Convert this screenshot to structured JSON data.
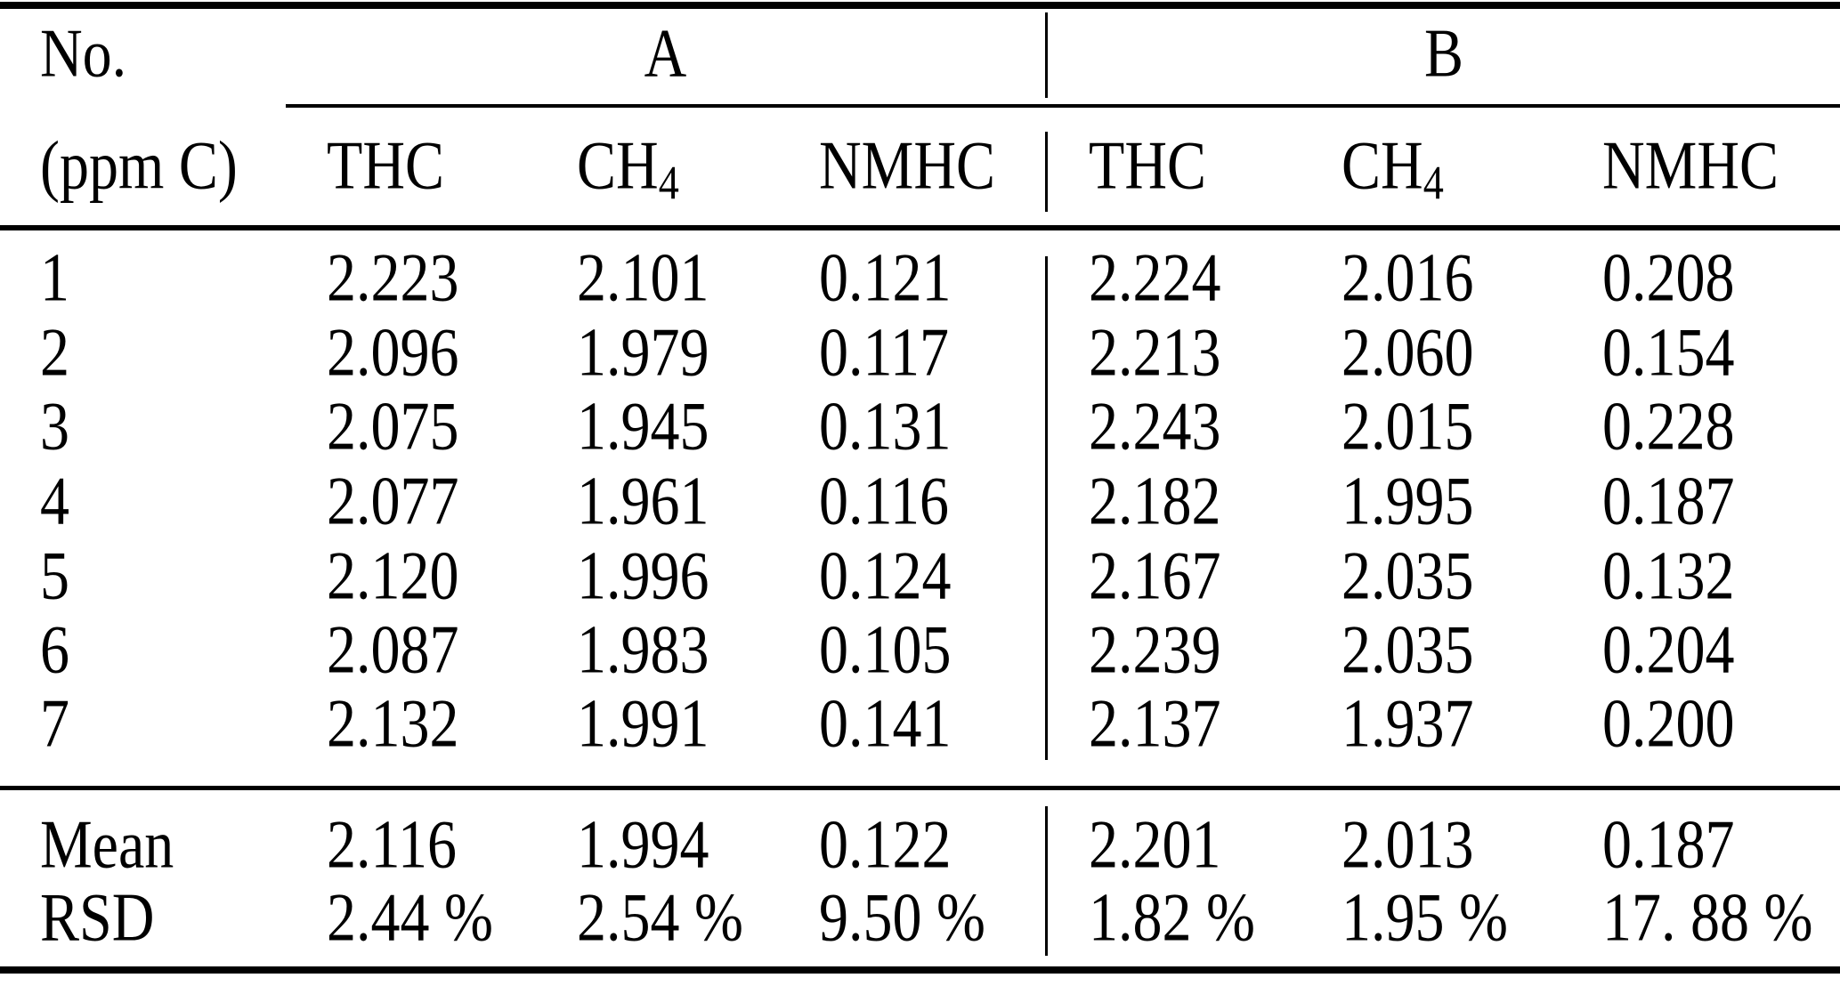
{
  "table": {
    "row_header": {
      "line1": "No.",
      "line2": "(ppm C)"
    },
    "groups": {
      "a": "A",
      "b": "B"
    },
    "columns": {
      "thc": "THC",
      "ch4_base": "CH",
      "ch4_sub": "4",
      "nmhc": "NMHC"
    },
    "rows": [
      {
        "no": "1",
        "a_thc": "2.223",
        "a_ch4": "2.101",
        "a_nmhc": "0.121",
        "b_thc": "2.224",
        "b_ch4": "2.016",
        "b_nmhc": "0.208"
      },
      {
        "no": "2",
        "a_thc": "2.096",
        "a_ch4": "1.979",
        "a_nmhc": "0.117",
        "b_thc": "2.213",
        "b_ch4": "2.060",
        "b_nmhc": "0.154"
      },
      {
        "no": "3",
        "a_thc": "2.075",
        "a_ch4": "1.945",
        "a_nmhc": "0.131",
        "b_thc": "2.243",
        "b_ch4": "2.015",
        "b_nmhc": "0.228"
      },
      {
        "no": "4",
        "a_thc": "2.077",
        "a_ch4": "1.961",
        "a_nmhc": "0.116",
        "b_thc": "2.182",
        "b_ch4": "1.995",
        "b_nmhc": "0.187"
      },
      {
        "no": "5",
        "a_thc": "2.120",
        "a_ch4": "1.996",
        "a_nmhc": "0.124",
        "b_thc": "2.167",
        "b_ch4": "2.035",
        "b_nmhc": "0.132"
      },
      {
        "no": "6",
        "a_thc": "2.087",
        "a_ch4": "1.983",
        "a_nmhc": "0.105",
        "b_thc": "2.239",
        "b_ch4": "2.035",
        "b_nmhc": "0.204"
      },
      {
        "no": "7",
        "a_thc": "2.132",
        "a_ch4": "1.991",
        "a_nmhc": "0.141",
        "b_thc": "2.137",
        "b_ch4": "1.937",
        "b_nmhc": "0.200"
      }
    ],
    "summary": [
      {
        "label": "Mean",
        "a_thc": "2.116",
        "a_ch4": "1.994",
        "a_nmhc": "0.122",
        "b_thc": "2.201",
        "b_ch4": "2.013",
        "b_nmhc": "0.187"
      },
      {
        "label": "RSD",
        "a_thc": "2.44 %",
        "a_ch4": "2.54 %",
        "a_nmhc": "9.50 %",
        "b_thc": "1.82 %",
        "b_ch4": "1.95 %",
        "b_nmhc": "17. 88 %"
      }
    ]
  }
}
